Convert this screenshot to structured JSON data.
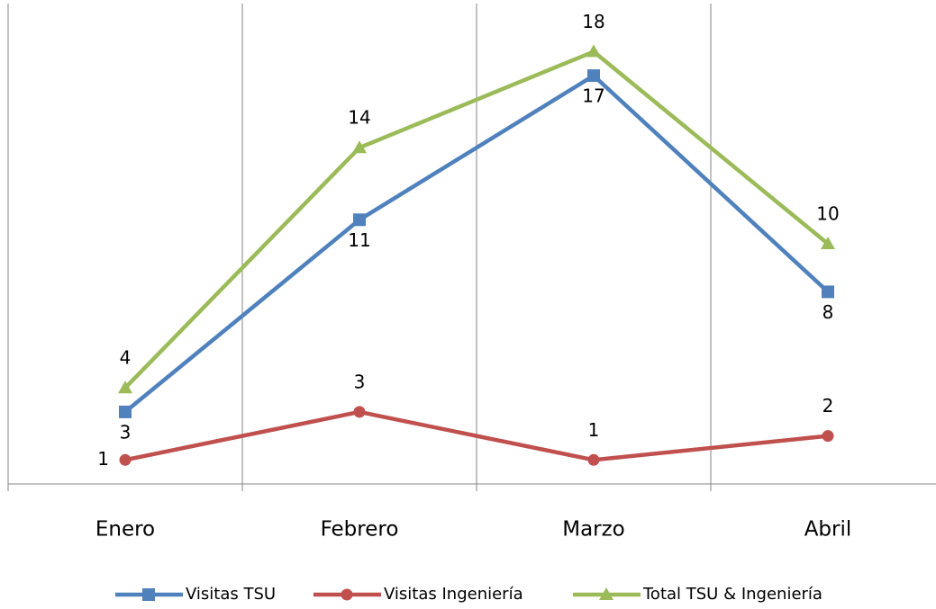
{
  "chart_data": {
    "type": "line",
    "categories": [
      "Enero",
      "Febrero",
      "Marzo",
      "Abril"
    ],
    "series": [
      {
        "name": "Visitas TSU",
        "color": "#4f81bd",
        "marker": "square",
        "values": [
          3,
          11,
          17,
          8
        ]
      },
      {
        "name": "Visitas Ingeniería",
        "color": "#c0504d",
        "marker": "circle",
        "values": [
          1,
          3,
          1,
          2
        ]
      },
      {
        "name": "Total TSU & Ingeniería",
        "color": "#9bbb59",
        "marker": "triangle",
        "values": [
          4,
          14,
          18,
          10
        ]
      }
    ],
    "ylim": [
      0,
      20
    ],
    "grid": true,
    "legend": "bottom"
  }
}
